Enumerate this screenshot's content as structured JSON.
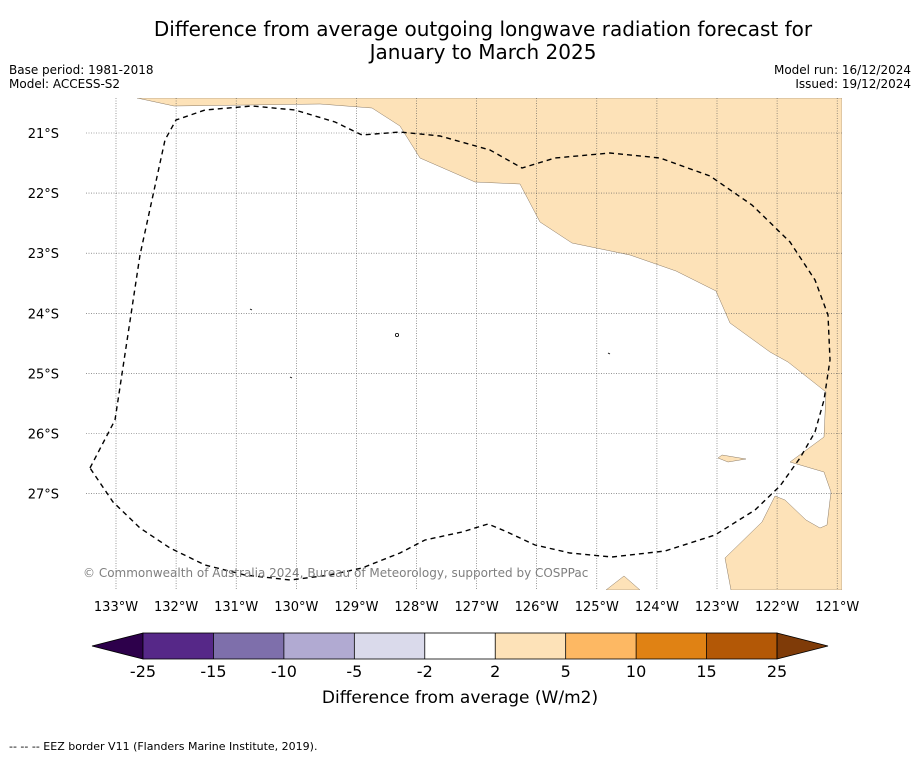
{
  "title": {
    "line1": "Difference from average outgoing longwave radiation forecast for",
    "line2": "January to March 2025"
  },
  "meta": {
    "base_period": "Base period: 1981-2018",
    "model": "Model: ACCESS-S2",
    "model_run": "Model run: 16/12/2024",
    "issued": "Issued: 19/12/2024"
  },
  "map": {
    "lat_labels": [
      "21°S",
      "22°S",
      "23°S",
      "24°S",
      "25°S",
      "26°S",
      "27°S"
    ],
    "lon_labels": [
      "133°W",
      "132°W",
      "131°W",
      "130°W",
      "129°W",
      "128°W",
      "127°W",
      "126°W",
      "125°W",
      "124°W",
      "123°W",
      "122°W",
      "121°W"
    ],
    "copyright": "© Commonwealth of Australia 2024, Bureau of Meteorology, supported by COSPPac",
    "fill_color_2_to_5": "#fde2b8",
    "eez_border_style": "dashed black"
  },
  "colorbar": {
    "label": "Difference from average (W/m2)",
    "ticks": [
      "-25",
      "-15",
      "-10",
      "-5",
      "-2",
      "2",
      "5",
      "10",
      "15",
      "25"
    ],
    "colors": [
      "#562888",
      "#7e6fab",
      "#b1aad2",
      "#dadaeb",
      "#ffffff",
      "#fde2b8",
      "#fdb863",
      "#e08214",
      "#b35806"
    ],
    "under_color": "#2d004b",
    "over_color": "#7f3b08"
  },
  "footer": "--  --  -- EEZ border V11 (Flanders Marine Institute, 2019)."
}
